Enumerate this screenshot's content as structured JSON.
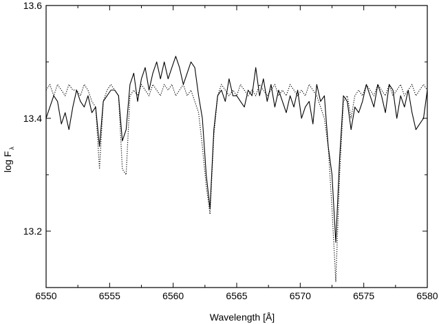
{
  "chart_data": {
    "type": "line",
    "xlabel": "Wavelength [Å]",
    "ylabel_main": "log F",
    "ylabel_sub": "λ",
    "xlim": [
      6550,
      6580
    ],
    "ylim": [
      13.1,
      13.6
    ],
    "x_ticks": [
      6550,
      6555,
      6560,
      6565,
      6570,
      6575,
      6580
    ],
    "y_ticks": [
      13.2,
      13.4,
      13.6
    ],
    "grid": false,
    "series": [
      {
        "style": "solid",
        "color": "#000000",
        "x": [
          6550.0,
          6550.3,
          6550.6,
          6550.9,
          6551.2,
          6551.5,
          6551.8,
          6552.1,
          6552.4,
          6552.7,
          6553.0,
          6553.3,
          6553.6,
          6553.9,
          6554.2,
          6554.5,
          6554.8,
          6555.1,
          6555.4,
          6555.7,
          6556.0,
          6556.3,
          6556.6,
          6556.9,
          6557.2,
          6557.5,
          6557.8,
          6558.1,
          6558.4,
          6558.7,
          6559.0,
          6559.3,
          6559.6,
          6559.9,
          6560.2,
          6560.5,
          6560.8,
          6561.1,
          6561.4,
          6561.7,
          6562.0,
          6562.3,
          6562.6,
          6562.9,
          6563.2,
          6563.5,
          6563.8,
          6564.1,
          6564.4,
          6564.7,
          6565.0,
          6565.3,
          6565.6,
          6565.9,
          6566.2,
          6566.5,
          6566.8,
          6567.1,
          6567.4,
          6567.7,
          6568.0,
          6568.3,
          6568.6,
          6568.9,
          6569.2,
          6569.5,
          6569.8,
          6570.1,
          6570.4,
          6570.7,
          6571.0,
          6571.3,
          6571.6,
          6571.9,
          6572.2,
          6572.5,
          6572.8,
          6573.1,
          6573.4,
          6573.7,
          6574.0,
          6574.3,
          6574.6,
          6574.9,
          6575.2,
          6575.5,
          6575.8,
          6576.1,
          6576.4,
          6576.7,
          6577.0,
          6577.3,
          6577.6,
          6577.9,
          6578.2,
          6578.5,
          6578.8,
          6579.1,
          6579.4,
          6579.7,
          6580.0
        ],
        "y": [
          13.4,
          13.42,
          13.44,
          13.43,
          13.39,
          13.41,
          13.38,
          13.42,
          13.45,
          13.43,
          13.42,
          13.44,
          13.41,
          13.42,
          13.35,
          13.43,
          13.44,
          13.45,
          13.45,
          13.44,
          13.36,
          13.38,
          13.46,
          13.48,
          13.43,
          13.47,
          13.49,
          13.45,
          13.48,
          13.5,
          13.47,
          13.5,
          13.47,
          13.49,
          13.51,
          13.49,
          13.46,
          13.48,
          13.5,
          13.49,
          13.44,
          13.4,
          13.3,
          13.24,
          13.38,
          13.44,
          13.45,
          13.43,
          13.47,
          13.44,
          13.44,
          13.43,
          13.42,
          13.45,
          13.44,
          13.49,
          13.44,
          13.47,
          13.43,
          13.46,
          13.42,
          13.45,
          13.43,
          13.41,
          13.44,
          13.42,
          13.45,
          13.4,
          13.42,
          13.43,
          13.39,
          13.46,
          13.43,
          13.44,
          13.35,
          13.3,
          13.18,
          13.33,
          13.44,
          13.43,
          13.38,
          13.42,
          13.41,
          13.43,
          13.46,
          13.44,
          13.42,
          13.46,
          13.44,
          13.41,
          13.46,
          13.45,
          13.4,
          13.44,
          13.42,
          13.45,
          13.41,
          13.38,
          13.39,
          13.4,
          13.45
        ]
      },
      {
        "style": "dotted",
        "color": "#000000",
        "x": [
          6550.0,
          6550.3,
          6550.6,
          6550.9,
          6551.2,
          6551.5,
          6551.8,
          6552.1,
          6552.4,
          6552.7,
          6553.0,
          6553.3,
          6553.6,
          6553.9,
          6554.2,
          6554.5,
          6554.8,
          6555.1,
          6555.4,
          6555.7,
          6556.0,
          6556.3,
          6556.6,
          6556.9,
          6557.2,
          6557.5,
          6557.8,
          6558.1,
          6558.4,
          6558.7,
          6559.0,
          6559.3,
          6559.6,
          6559.9,
          6560.2,
          6560.5,
          6560.8,
          6561.1,
          6561.4,
          6561.7,
          6562.0,
          6562.3,
          6562.6,
          6562.9,
          6563.2,
          6563.5,
          6563.8,
          6564.1,
          6564.4,
          6564.7,
          6565.0,
          6565.3,
          6565.6,
          6565.9,
          6566.2,
          6566.5,
          6566.8,
          6567.1,
          6567.4,
          6567.7,
          6568.0,
          6568.3,
          6568.6,
          6568.9,
          6569.2,
          6569.5,
          6569.8,
          6570.1,
          6570.4,
          6570.7,
          6571.0,
          6571.3,
          6571.6,
          6571.9,
          6572.2,
          6572.5,
          6572.8,
          6573.1,
          6573.4,
          6573.7,
          6574.0,
          6574.3,
          6574.6,
          6574.9,
          6575.2,
          6575.5,
          6575.8,
          6576.1,
          6576.4,
          6576.7,
          6577.0,
          6577.3,
          6577.6,
          6577.9,
          6578.2,
          6578.5,
          6578.8,
          6579.1,
          6579.4,
          6579.7,
          6580.0
        ],
        "y": [
          13.45,
          13.46,
          13.44,
          13.46,
          13.45,
          13.44,
          13.46,
          13.45,
          13.45,
          13.44,
          13.46,
          13.45,
          13.43,
          13.42,
          13.31,
          13.43,
          13.45,
          13.46,
          13.45,
          13.44,
          13.31,
          13.3,
          13.44,
          13.45,
          13.44,
          13.46,
          13.45,
          13.44,
          13.46,
          13.45,
          13.44,
          13.46,
          13.45,
          13.46,
          13.44,
          13.45,
          13.46,
          13.44,
          13.45,
          13.43,
          13.41,
          13.35,
          13.28,
          13.23,
          13.37,
          13.44,
          13.46,
          13.45,
          13.44,
          13.45,
          13.44,
          13.46,
          13.45,
          13.44,
          13.45,
          13.44,
          13.46,
          13.45,
          13.44,
          13.45,
          13.46,
          13.44,
          13.45,
          13.44,
          13.46,
          13.45,
          13.44,
          13.45,
          13.44,
          13.46,
          13.45,
          13.44,
          13.42,
          13.4,
          13.35,
          13.24,
          13.11,
          13.3,
          13.43,
          13.44,
          13.4,
          13.44,
          13.45,
          13.44,
          13.46,
          13.45,
          13.44,
          13.46,
          13.45,
          13.44,
          13.46,
          13.44,
          13.45,
          13.46,
          13.44,
          13.45,
          13.46,
          13.44,
          13.45,
          13.46,
          13.45
        ]
      }
    ]
  }
}
